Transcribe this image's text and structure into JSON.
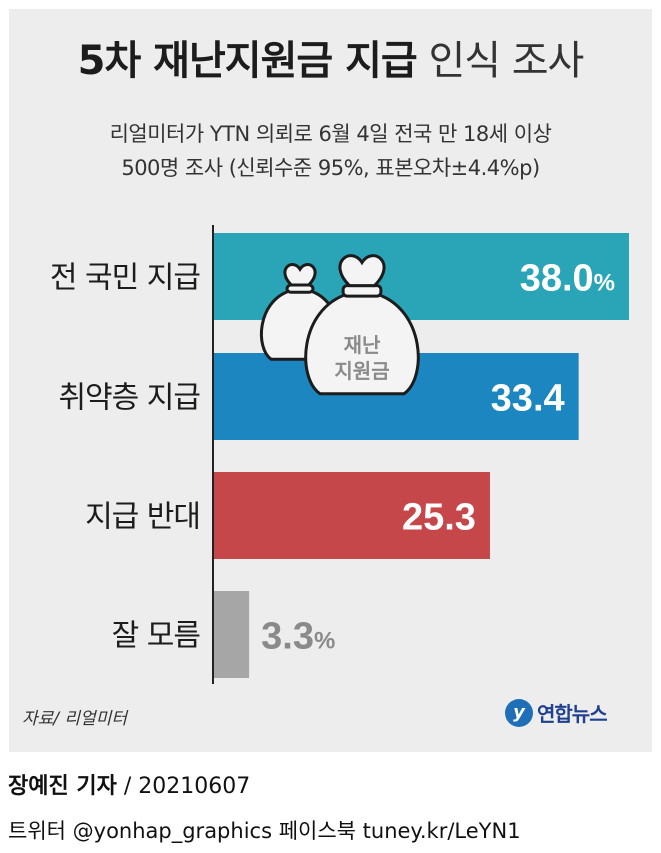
{
  "header": {
    "title_bold": "5차 재난지원금 지급",
    "title_light": "인식 조사",
    "subtitle_line1": "리얼미터가 YTN 의뢰로 6월 4일 전국 만 18세 이상",
    "subtitle_line2": "500명 조사 (신뢰수준 95%, 표본오차±4.4%p)"
  },
  "illustration": {
    "bag_label_line1": "재난",
    "bag_label_line2": "지원금",
    "icon": "money-bag-icon"
  },
  "chart_data": {
    "type": "bar",
    "orientation": "horizontal",
    "categories": [
      "전 국민 지급",
      "취약층 지급",
      "지급 반대",
      "잘 모름"
    ],
    "values": [
      38.0,
      33.4,
      25.3,
      3.3
    ],
    "value_labels": [
      "38.0",
      "33.4",
      "25.3",
      "3.3"
    ],
    "unit": "%",
    "unit_shown_on": [
      0,
      3
    ],
    "colors": [
      "#2aa5b8",
      "#1b86c0",
      "#c5474a",
      "#a6a6a6"
    ],
    "label_color_outside": "#8a8a8a",
    "xlim": [
      0,
      38.0
    ],
    "grid": false,
    "legend": "none"
  },
  "footer": {
    "source": "자료/ 리얼미터",
    "logo_text": "연합뉴스",
    "reporter": "장예진 기자",
    "date": " / 20210607",
    "social": "트위터 @yonhap_graphics  페이스북 tuney.kr/LeYN1"
  }
}
